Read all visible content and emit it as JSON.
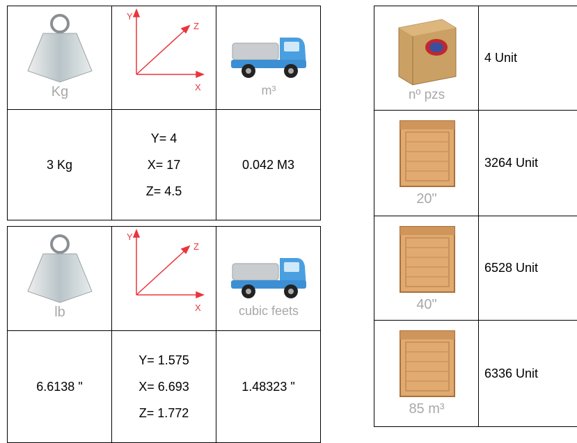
{
  "metric": {
    "header": [
      {
        "label": "Kg"
      },
      {
        "y": "Y",
        "z": "Z",
        "x": "X"
      },
      {
        "label": "m³"
      }
    ],
    "row": [
      "3 Kg",
      [
        "Y= 4",
        "X= 17",
        "Z= 4.5"
      ],
      "0.042 M3"
    ]
  },
  "imperial": {
    "header": [
      {
        "label": "lb"
      },
      {
        "y": "Y",
        "z": "Z",
        "x": "X"
      },
      {
        "label": "cubic feets"
      }
    ],
    "row": [
      "6.6138 \"",
      [
        "Y= 1.575",
        "X= 6.693",
        "Z= 1.772"
      ],
      "1.48323 \""
    ]
  },
  "units": {
    "rows": [
      {
        "label": "nº pzs",
        "value": "4 Unit"
      },
      {
        "label": "20\"",
        "value": "3264 Unit"
      },
      {
        "label": "40\"",
        "value": "6528 Unit"
      },
      {
        "label": "85 m³",
        "value": "6336 Unit"
      }
    ]
  }
}
